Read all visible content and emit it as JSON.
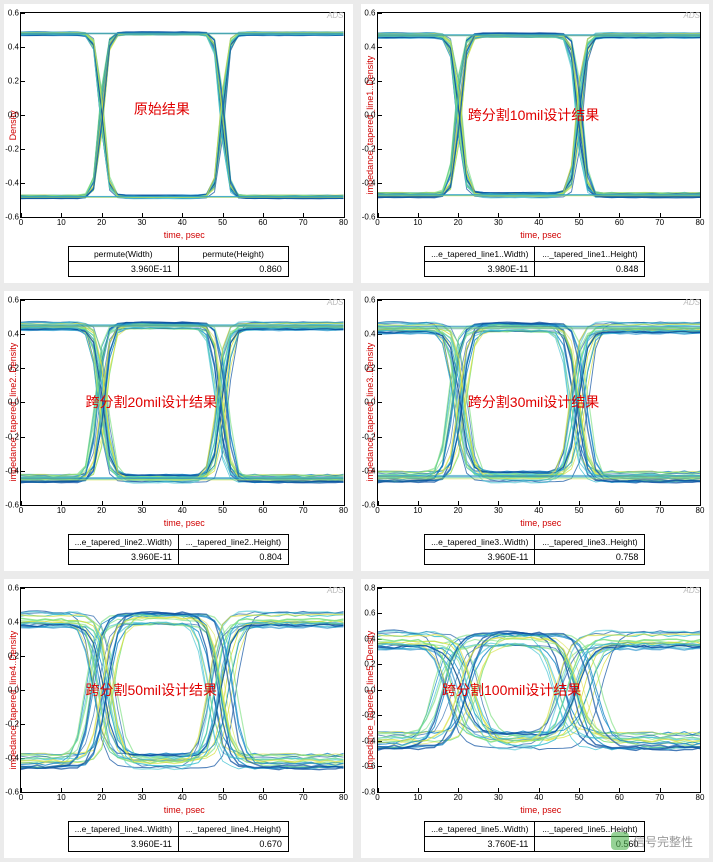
{
  "global": {
    "xlabel": "time, psec",
    "ads_mark": "ADS",
    "background_color": "#ebebeb",
    "panel_bg": "#ffffff",
    "axis_color": "#000000",
    "label_color": "#d00000",
    "annotation_color": "#e00000",
    "label_fontsize": 9,
    "tick_fontsize": 8,
    "annotation_fontsize": 14,
    "xlim": [
      0,
      80
    ],
    "xtick_step": 10,
    "eye_colors": [
      "#0a4fa0",
      "#1a8bc8",
      "#3ac0d0",
      "#7de080",
      "#d8e040"
    ],
    "watermark_text": "信号完整性",
    "watermark_icon_bg": "rgba(80,180,80,0.6)"
  },
  "panels": [
    {
      "ylabel": "Density",
      "annotation": "原始结果",
      "anno_pos": [
        0.35,
        0.42
      ],
      "ylim": [
        -0.6,
        0.6
      ],
      "ytick_step": 0.2,
      "eye_levels": [
        0.48,
        -0.48
      ],
      "jitter": 0.018,
      "noise": 0.02,
      "crossings": [
        20,
        50
      ],
      "table": {
        "header": [
          "permute(Width)",
          "permute(Height)"
        ],
        "row": [
          "3.960E-11",
          "0.860"
        ]
      }
    },
    {
      "ylabel": "impedance_tapered_line1..Density",
      "annotation": "跨分割10mil设计结果",
      "anno_pos": [
        0.28,
        0.45
      ],
      "ylim": [
        -0.6,
        0.6
      ],
      "ytick_step": 0.2,
      "eye_levels": [
        0.47,
        -0.47
      ],
      "jitter": 0.03,
      "noise": 0.03,
      "crossings": [
        20,
        50
      ],
      "table": {
        "header": [
          "...e_tapered_line1..Width)",
          "..._tapered_line1..Height)"
        ],
        "row": [
          "3.980E-11",
          "0.848"
        ]
      }
    },
    {
      "ylabel": "impedance_tapered_line2..Density",
      "annotation": "跨分割20mil设计结果",
      "anno_pos": [
        0.2,
        0.45
      ],
      "ylim": [
        -0.6,
        0.6
      ],
      "ytick_step": 0.2,
      "eye_levels": [
        0.45,
        -0.45
      ],
      "jitter": 0.06,
      "noise": 0.05,
      "crossings": [
        20,
        50
      ],
      "table": {
        "header": [
          "...e_tapered_line2..Width)",
          "..._tapered_line2..Height)"
        ],
        "row": [
          "3.960E-11",
          "0.804"
        ]
      }
    },
    {
      "ylabel": "impedance_tapered_line3..Density",
      "annotation": "跨分割30mil设计结果",
      "anno_pos": [
        0.28,
        0.45
      ],
      "ylim": [
        -0.6,
        0.6
      ],
      "ytick_step": 0.2,
      "eye_levels": [
        0.44,
        -0.44
      ],
      "jitter": 0.09,
      "noise": 0.07,
      "crossings": [
        20,
        50
      ],
      "table": {
        "header": [
          "...e_tapered_line3..Width)",
          "..._tapered_line3..Height)"
        ],
        "row": [
          "3.960E-11",
          "0.758"
        ]
      }
    },
    {
      "ylabel": "impedance_tapered_line4..Density",
      "annotation": "跨分割50mil设计结果",
      "anno_pos": [
        0.2,
        0.45
      ],
      "ylim": [
        -0.6,
        0.6
      ],
      "ytick_step": 0.2,
      "eye_levels": [
        0.42,
        -0.42
      ],
      "jitter": 0.14,
      "noise": 0.1,
      "crossings": [
        20,
        50
      ],
      "table": {
        "header": [
          "...e_tapered_line4..Width)",
          "..._tapered_line4..Height)"
        ],
        "row": [
          "3.960E-11",
          "0.670"
        ]
      }
    },
    {
      "ylabel": "impedance_tapered_line5..Density",
      "annotation": "跨分割100mil设计结果",
      "anno_pos": [
        0.2,
        0.45
      ],
      "ylim": [
        -0.8,
        0.8
      ],
      "ytick_step": 0.2,
      "eye_levels": [
        0.4,
        -0.4
      ],
      "jitter": 0.22,
      "noise": 0.16,
      "crossings": [
        20,
        50
      ],
      "table": {
        "header": [
          "...e_tapered_line5..Width)",
          "..._tapered_line5..Height)"
        ],
        "row": [
          "3.760E-11",
          "0.560"
        ]
      }
    }
  ]
}
